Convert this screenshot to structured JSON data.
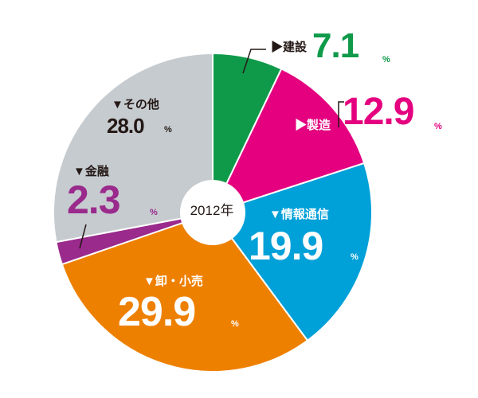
{
  "chart_data": {
    "type": "pie",
    "center_label": "2012年",
    "start_angle_deg": 0,
    "direction": "clockwise",
    "percent_sign": "%",
    "slices": [
      {
        "name": "▶建設",
        "value": 7.1,
        "value_label": "7.1",
        "color": "#0f9a4a",
        "value_color": "#0f9a4a"
      },
      {
        "name": "▶製造",
        "value": 12.9,
        "value_label": "12.9",
        "color": "#e4007f",
        "value_color": "#e4007f"
      },
      {
        "name": "▼情報通信",
        "value": 19.9,
        "value_label": "19.9",
        "color": "#00a0d8",
        "value_color": "#ffffff"
      },
      {
        "name": "▼卸・小売",
        "value": 29.9,
        "value_label": "29.9",
        "color": "#ee8000",
        "value_color": "#ffffff"
      },
      {
        "name": "▼金融",
        "value": 2.3,
        "value_label": "2.3",
        "color": "#9a2a8c",
        "value_color": "#9a2a8c"
      },
      {
        "name": "▼その他",
        "value": 28.0,
        "value_label": "28.0",
        "color": "#c6cbcf",
        "value_color": "#231815"
      }
    ]
  }
}
